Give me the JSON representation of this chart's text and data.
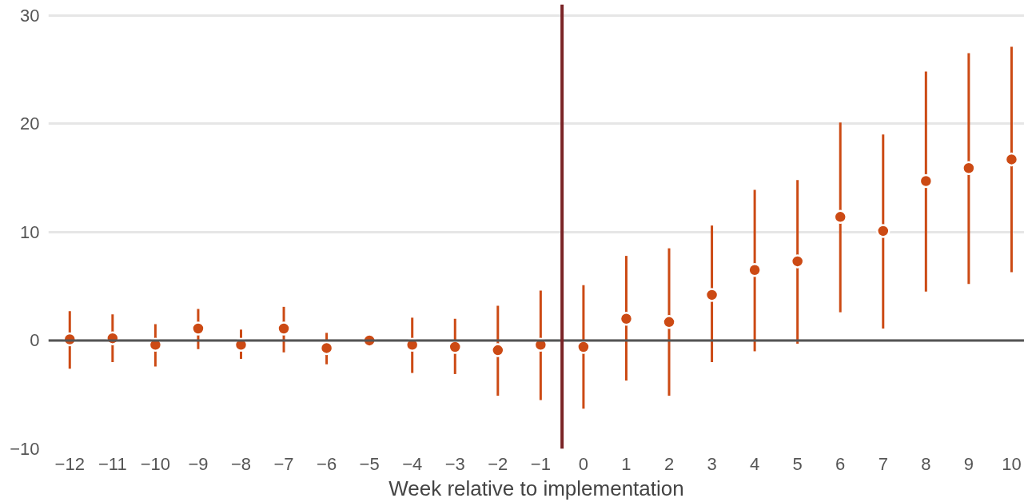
{
  "chart_data": {
    "type": "scatter",
    "xlabel": "Week relative to implementation",
    "x": [
      -12,
      -11,
      -10,
      -9,
      -8,
      -7,
      -6,
      -5,
      -4,
      -3,
      -2,
      -1,
      0,
      1,
      2,
      3,
      4,
      5,
      6,
      7,
      8,
      9,
      10
    ],
    "series": [
      {
        "color": "#cc4a14",
        "values": [
          0.1,
          0.2,
          -0.4,
          1.1,
          -0.4,
          1.1,
          -0.7,
          0,
          -0.4,
          -0.6,
          -0.9,
          -0.4,
          -0.6,
          2.0,
          1.7,
          4.2,
          6.5,
          7.3,
          11.4,
          10.1,
          14.7,
          15.9,
          16.7
        ],
        "errors": [
          [
            -2.6,
            2.7
          ],
          [
            -2.0,
            2.4
          ],
          [
            -2.4,
            1.5
          ],
          [
            -0.8,
            2.9
          ],
          [
            -1.7,
            1.0
          ],
          [
            -1.1,
            3.1
          ],
          [
            -2.2,
            0.7
          ],
          null,
          [
            -3.0,
            2.1
          ],
          [
            -3.1,
            2.0
          ],
          [
            -5.1,
            3.2
          ],
          [
            -5.5,
            4.6
          ],
          [
            -6.3,
            5.1
          ],
          [
            -3.7,
            7.8
          ],
          [
            -5.1,
            8.5
          ],
          [
            -2.0,
            10.6
          ],
          [
            -1.0,
            13.9
          ],
          [
            -0.3,
            14.8
          ],
          [
            2.6,
            20.1
          ],
          [
            1.1,
            19.0
          ],
          [
            4.5,
            24.8
          ],
          [
            5.2,
            26.5
          ],
          [
            6.3,
            27.1
          ]
        ]
      }
    ],
    "marker": "circle",
    "grid": "y",
    "xlim": [
      -12.5,
      10.3
    ],
    "ylim": [
      -10,
      31
    ],
    "xticks": [
      {
        "value": -12,
        "label": "−12"
      },
      {
        "value": -11,
        "label": "−11"
      },
      {
        "value": -10,
        "label": "−10"
      },
      {
        "value": -9,
        "label": "−9"
      },
      {
        "value": -8,
        "label": "−8"
      },
      {
        "value": -7,
        "label": "−7"
      },
      {
        "value": -6,
        "label": "−6"
      },
      {
        "value": -5,
        "label": "−5"
      },
      {
        "value": -4,
        "label": "−4"
      },
      {
        "value": -3,
        "label": "−3"
      },
      {
        "value": -2,
        "label": "−2"
      },
      {
        "value": -1,
        "label": "−1"
      },
      0,
      1,
      2,
      3,
      4,
      5,
      6,
      7,
      8,
      9,
      10
    ],
    "yticks": [
      {
        "value": -10,
        "label": "−10"
      },
      0,
      10,
      20,
      30
    ],
    "ref_lines": [
      {
        "axis": "y",
        "value": 0,
        "color": "#555555"
      },
      {
        "axis": "x",
        "value": -0.5,
        "color": "#7a2426"
      }
    ]
  }
}
